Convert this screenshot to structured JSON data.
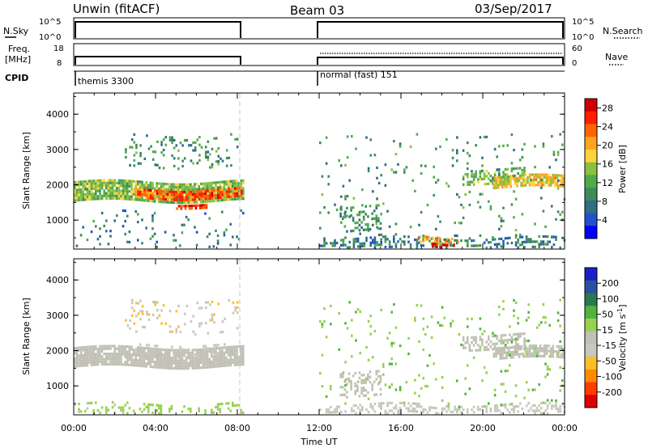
{
  "header": {
    "station": "Unwin (fitACF)",
    "beam": "Beam 03",
    "date": "03/Sep/2017"
  },
  "status_panels": {
    "nsky_label": "N.Sky",
    "nsky_ticks": [
      "10^5",
      "10^0"
    ],
    "nsearch_label": "N.Search",
    "nsearch_ticks": [
      "10^5",
      "10^0"
    ],
    "freq_label_1": "Freq.",
    "freq_label_2": "[MHz]",
    "freq_ticks": [
      "18",
      "8"
    ],
    "nave_label": "Nave",
    "nave_ticks": [
      "60",
      "0"
    ],
    "cpid_label": "CPID",
    "cpid_segments": [
      {
        "text": "themis 3300",
        "start": 0,
        "end": 8.25
      },
      {
        "text": "normal (fast) 151",
        "start": 12,
        "end": 24
      }
    ]
  },
  "colors": {
    "power_scale": [
      "#0000ff",
      "#2050d0",
      "#2e6e80",
      "#3c8c5a",
      "#50aa4a",
      "#88c040",
      "#ffd23c",
      "#ffa41e",
      "#ff6400",
      "#ff1e00",
      "#d00000"
    ],
    "velocity_scale": [
      "#e00000",
      "#ff3c00",
      "#ff8c00",
      "#ffbe28",
      "#c8c8be",
      "#c0c0b4",
      "#96d250",
      "#50b43c",
      "#2a7850",
      "#2a50a0",
      "#1e1ec8"
    ]
  },
  "chart_data": [
    {
      "type": "heatmap",
      "name": "power",
      "ylabel": "Slant Range [km]",
      "y_ticks": [
        1000,
        2000,
        3000,
        4000
      ],
      "ylim": [
        180,
        4600
      ],
      "xlim": [
        0,
        24
      ],
      "colorbar_label": "Power [dB]",
      "colorbar_ticks": [
        4,
        8,
        12,
        16,
        20,
        24,
        28
      ],
      "colorbar_range": [
        0,
        30
      ],
      "regions": [
        {
          "x0": 0,
          "x1": 8.25,
          "y_center": 1850,
          "y_width": 520,
          "value": 14,
          "density": 0.9
        },
        {
          "x0": 3.0,
          "x1": 8.25,
          "y_center": 1800,
          "y_width": 260,
          "value": 24,
          "density": 0.85
        },
        {
          "x0": 5.0,
          "x1": 6.5,
          "y_center": 1480,
          "y_width": 120,
          "value": 26,
          "density": 0.8
        },
        {
          "x0": 2.5,
          "x1": 8.0,
          "y_center": 3000,
          "y_width": 900,
          "value": 10,
          "density": 0.15
        },
        {
          "x0": 0,
          "x1": 8.25,
          "y_center": 800,
          "y_width": 1000,
          "value": 8,
          "density": 0.08
        },
        {
          "x0": 12.0,
          "x1": 24,
          "y_center": 400,
          "y_width": 360,
          "value": 8,
          "density": 0.35
        },
        {
          "x0": 13.0,
          "x1": 15.0,
          "y_center": 1100,
          "y_width": 700,
          "value": 10,
          "density": 0.35
        },
        {
          "x0": 16.8,
          "x1": 18.8,
          "y_center": 500,
          "y_width": 200,
          "value": 20,
          "density": 0.5
        },
        {
          "x0": 17.5,
          "x1": 18.6,
          "y_center": 350,
          "y_width": 120,
          "value": 28,
          "density": 0.8
        },
        {
          "x0": 19.0,
          "x1": 22.0,
          "y_center": 2300,
          "y_width": 400,
          "value": 14,
          "density": 0.5
        },
        {
          "x0": 20.5,
          "x1": 24.0,
          "y_center": 2150,
          "y_width": 360,
          "value": 18,
          "density": 0.8
        },
        {
          "x0": 12.0,
          "x1": 24,
          "y_center": 2000,
          "y_width": 3000,
          "value": 10,
          "density": 0.04
        }
      ]
    },
    {
      "type": "heatmap",
      "name": "velocity",
      "ylabel": "Slant Range [km]",
      "y_ticks": [
        1000,
        2000,
        3000,
        4000
      ],
      "ylim": [
        180,
        4600
      ],
      "xlim": [
        0,
        24
      ],
      "colorbar_label": "Velocity [m s",
      "colorbar_superscript": "-1",
      "colorbar_label_tail": "]",
      "colorbar_ticks": [
        200,
        100,
        50,
        15,
        -15,
        -50,
        -100,
        -200
      ],
      "colorbar_range": [
        -250,
        250
      ],
      "regions": [
        {
          "x0": 0,
          "x1": 8.25,
          "y_center": 1850,
          "y_width": 520,
          "value": 0,
          "density": 0.9
        },
        {
          "x0": 3.0,
          "x1": 8.25,
          "y_center": 2050,
          "y_width": 300,
          "value": -40,
          "density": 0.25
        },
        {
          "x0": 2.5,
          "x1": 8.0,
          "y_center": 3000,
          "y_width": 900,
          "value": -60,
          "density": 0.12
        },
        {
          "x0": 0,
          "x1": 8.25,
          "y_center": 400,
          "y_width": 360,
          "value": 40,
          "density": 0.25
        },
        {
          "x0": 12.0,
          "x1": 24,
          "y_center": 350,
          "y_width": 300,
          "value": -40,
          "density": 0.4
        },
        {
          "x0": 13.0,
          "x1": 15.0,
          "y_center": 1100,
          "y_width": 700,
          "value": 0,
          "density": 0.35
        },
        {
          "x0": 19.0,
          "x1": 22.0,
          "y_center": 2300,
          "y_width": 400,
          "value": 0,
          "density": 0.5
        },
        {
          "x0": 20.5,
          "x1": 24.0,
          "y_center": 2000,
          "y_width": 360,
          "value": 0,
          "density": 0.8
        },
        {
          "x0": 12.0,
          "x1": 24,
          "y_center": 2000,
          "y_width": 3000,
          "value": 60,
          "density": 0.04
        }
      ]
    }
  ],
  "time_axis": {
    "label": "Time UT",
    "ticks": [
      "00:00",
      "04:00",
      "08:00",
      "12:00",
      "16:00",
      "20:00",
      "00:00"
    ]
  }
}
